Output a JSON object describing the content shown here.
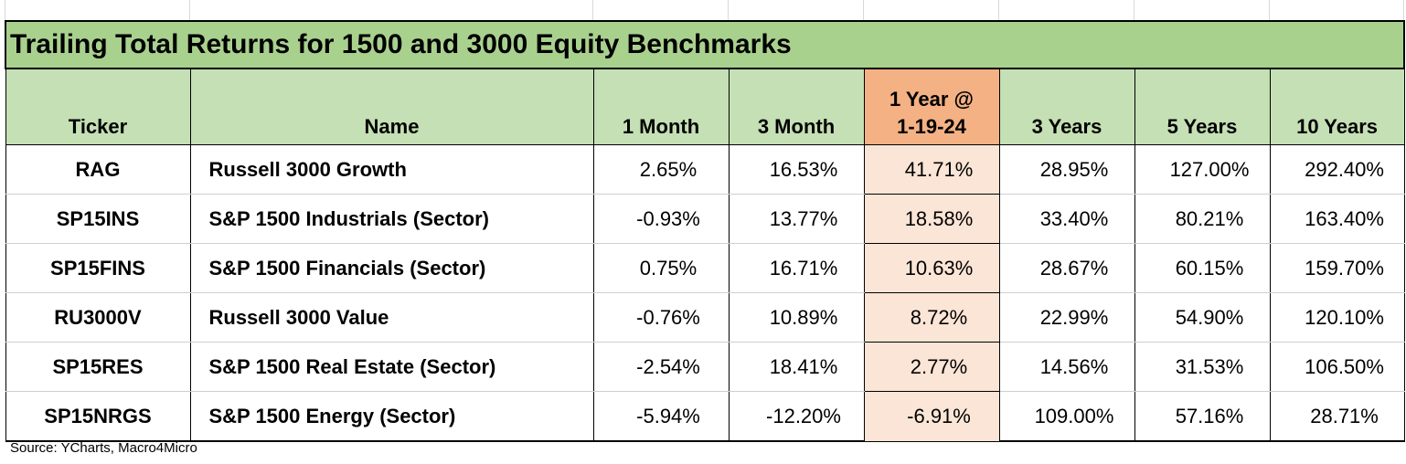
{
  "title": "Trailing Total Returns for 1500 and 3000 Equity Benchmarks",
  "headers": {
    "ticker": "Ticker",
    "name": "Name",
    "m1": "1 Month",
    "m3": "3 Month",
    "y1_line1": "1 Year @",
    "y1_line2": "1-19-24",
    "y3": "3 Years",
    "y5": "5 Years",
    "y10": "10 Years"
  },
  "rows": [
    {
      "ticker": "RAG",
      "name": "Russell 3000 Growth",
      "m1": "2.65%",
      "m3": "16.53%",
      "y1": "41.71%",
      "y3": "28.95%",
      "y5": "127.00%",
      "y10": "292.40%"
    },
    {
      "ticker": "SP15INS",
      "name": "S&P 1500 Industrials (Sector)",
      "m1": "-0.93%",
      "m3": "13.77%",
      "y1": "18.58%",
      "y3": "33.40%",
      "y5": "80.21%",
      "y10": "163.40%"
    },
    {
      "ticker": "SP15FINS",
      "name": "S&P 1500 Financials (Sector)",
      "m1": "0.75%",
      "m3": "16.71%",
      "y1": "10.63%",
      "y3": "28.67%",
      "y5": "60.15%",
      "y10": "159.70%"
    },
    {
      "ticker": "RU3000V",
      "name": "Russell 3000 Value",
      "m1": "-0.76%",
      "m3": "10.89%",
      "y1": "8.72%",
      "y3": "22.99%",
      "y5": "54.90%",
      "y10": "120.10%"
    },
    {
      "ticker": "SP15RES",
      "name": "S&P 1500 Real Estate (Sector)",
      "m1": "-2.54%",
      "m3": "18.41%",
      "y1": "2.77%",
      "y3": "14.56%",
      "y5": "31.53%",
      "y10": "106.50%"
    },
    {
      "ticker": "SP15NRGS",
      "name": "S&P 1500 Energy (Sector)",
      "m1": "-5.94%",
      "m3": "-12.20%",
      "y1": "-6.91%",
      "y3": "109.00%",
      "y5": "57.16%",
      "y10": "28.71%"
    }
  ],
  "source": "Source: YCharts, Macro4Micro",
  "colors": {
    "title_bg": "#a9d18e",
    "header_bg": "#c5e0b4",
    "highlight_header_bg": "#f4b183",
    "highlight_cell_bg": "#fbe5d6"
  }
}
